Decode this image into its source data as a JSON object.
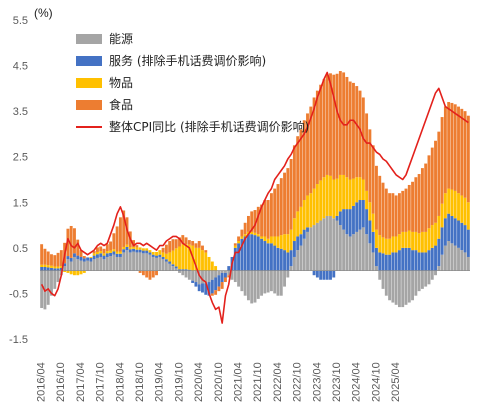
{
  "chart_data": {
    "type": "bar",
    "subtype": "stacked-bar-with-line",
    "unit_label": "(%)",
    "ylim": [
      -1.5,
      5.5
    ],
    "y_ticks": [
      "5.5",
      "4.5",
      "3.5",
      "2.5",
      "1.5",
      "0.5",
      "-0.5",
      "-1.5"
    ],
    "x_tick_labels": [
      "2016/04",
      "2016/10",
      "2017/04",
      "2017/10",
      "2018/04",
      "2018/10",
      "2019/04",
      "2019/10",
      "2020/04",
      "2020/10",
      "2021/04",
      "2021/10",
      "2022/04",
      "2022/10",
      "2023/04",
      "2023/10",
      "2024/04",
      "2024/10",
      "2025/04"
    ],
    "x_start": "2016/04",
    "legend_position": "top-left",
    "grid": false,
    "colors": {
      "energy": "#a5a5a5",
      "services": "#4472c4",
      "goods": "#ffc000",
      "food": "#ed7d31",
      "line": "#e3211c"
    },
    "series": [
      {
        "name": "能源",
        "key": "energy",
        "color": "#a5a5a5",
        "values": [
          -0.82,
          -0.85,
          -0.75,
          -0.55,
          -0.4,
          -0.25,
          -0.1,
          0.1,
          0.25,
          0.2,
          0.3,
          0.25,
          0.22,
          0.2,
          0.22,
          0.2,
          0.25,
          0.28,
          0.3,
          0.25,
          0.3,
          0.32,
          0.35,
          0.3,
          0.3,
          0.4,
          0.45,
          0.4,
          0.42,
          0.4,
          0.4,
          0.38,
          0.38,
          0.35,
          0.3,
          0.28,
          0.3,
          0.25,
          0.2,
          0.15,
          0.1,
          0.05,
          -0.05,
          -0.1,
          -0.15,
          -0.2,
          -0.22,
          -0.25,
          -0.3,
          -0.28,
          -0.28,
          -0.25,
          -0.2,
          -0.15,
          -0.1,
          -0.05,
          -0.05,
          -0.1,
          -0.2,
          -0.25,
          -0.35,
          -0.45,
          -0.55,
          -0.65,
          -0.72,
          -0.7,
          -0.62,
          -0.55,
          -0.5,
          -0.48,
          -0.45,
          -0.5,
          -0.55,
          -0.55,
          -0.35,
          -0.15,
          0.1,
          0.3,
          0.45,
          0.55,
          0.7,
          0.85,
          0.95,
          1.0,
          1.05,
          1.1,
          1.15,
          1.2,
          1.2,
          1.15,
          1.1,
          1.0,
          0.9,
          0.8,
          0.75,
          0.8,
          0.85,
          0.9,
          0.95,
          0.8,
          0.6,
          0.4,
          0.1,
          -0.2,
          -0.4,
          -0.55,
          -0.65,
          -0.7,
          -0.75,
          -0.8,
          -0.8,
          -0.75,
          -0.7,
          -0.65,
          -0.55,
          -0.45,
          -0.4,
          -0.35,
          -0.3,
          -0.2,
          -0.1,
          0.1,
          0.35,
          0.55,
          0.65,
          0.6,
          0.55,
          0.5,
          0.45,
          0.4,
          0.3
        ]
      },
      {
        "name": "服务 (排除手机话费调价影响)",
        "key": "services",
        "color": "#4472c4",
        "values": [
          0.08,
          0.08,
          0.07,
          0.06,
          0.05,
          0.05,
          0.06,
          0.06,
          0.07,
          0.08,
          0.08,
          0.08,
          0.08,
          0.07,
          0.07,
          0.08,
          0.08,
          0.08,
          0.08,
          0.08,
          0.08,
          0.07,
          0.07,
          0.07,
          0.07,
          0.07,
          0.07,
          0.07,
          0.06,
          0.06,
          0.06,
          0.06,
          0.06,
          0.05,
          0.05,
          0.05,
          0.05,
          0.05,
          0.05,
          0.05,
          0.04,
          0.04,
          0.03,
          0.03,
          0.03,
          0.02,
          -0.05,
          -0.1,
          -0.15,
          -0.2,
          -0.25,
          -0.3,
          -0.3,
          -0.28,
          -0.25,
          -0.2,
          -0.1,
          0.1,
          0.3,
          0.5,
          0.6,
          0.7,
          0.75,
          0.8,
          0.8,
          0.78,
          0.75,
          0.7,
          0.65,
          0.6,
          0.6,
          0.55,
          0.5,
          0.48,
          0.45,
          0.4,
          0.35,
          0.35,
          0.3,
          0.25,
          0.2,
          0.1,
          0.0,
          -0.1,
          -0.15,
          -0.2,
          -0.2,
          -0.2,
          -0.2,
          -0.15,
          0.1,
          0.3,
          0.45,
          0.55,
          0.6,
          0.62,
          0.65,
          0.65,
          0.6,
          0.55,
          0.5,
          0.45,
          0.4,
          0.4,
          0.38,
          0.35,
          0.35,
          0.4,
          0.4,
          0.45,
          0.5,
          0.5,
          0.5,
          0.45,
          0.45,
          0.4,
          0.4,
          0.4,
          0.45,
          0.5,
          0.55,
          0.6,
          0.6,
          0.6,
          0.6,
          0.6,
          0.6,
          0.6,
          0.6,
          0.6,
          0.6
        ]
      },
      {
        "name": "物品",
        "key": "goods",
        "color": "#ffc000",
        "values": [
          0.05,
          0.05,
          0.05,
          0.05,
          0.04,
          0.04,
          0.04,
          -0.03,
          -0.05,
          -0.08,
          -0.1,
          -0.1,
          -0.08,
          -0.05,
          0.0,
          0.02,
          0.05,
          0.05,
          0.05,
          0.05,
          0.05,
          0.05,
          0.05,
          0.05,
          0.05,
          0.05,
          0.05,
          0.04,
          0.04,
          0.05,
          0.05,
          0.05,
          0.05,
          0.05,
          0.06,
          0.08,
          0.1,
          0.1,
          0.12,
          0.2,
          0.3,
          0.4,
          0.5,
          0.55,
          0.55,
          0.55,
          0.55,
          0.5,
          0.5,
          0.45,
          0.4,
          0.3,
          0.2,
          0.1,
          0.0,
          0.0,
          0.0,
          0.0,
          0.0,
          0.05,
          0.05,
          0.05,
          0.05,
          0.05,
          0.05,
          0.05,
          0.05,
          0.05,
          0.1,
          0.1,
          0.15,
          0.2,
          0.25,
          0.3,
          0.35,
          0.4,
          0.45,
          0.5,
          0.55,
          0.6,
          0.65,
          0.7,
          0.75,
          0.8,
          0.85,
          0.88,
          0.9,
          0.9,
          0.88,
          0.85,
          0.82,
          0.8,
          0.75,
          0.7,
          0.65,
          0.6,
          0.55,
          0.5,
          0.45,
          0.4,
          0.4,
          0.4,
          0.4,
          0.38,
          0.35,
          0.35,
          0.35,
          0.35,
          0.35,
          0.35,
          0.35,
          0.35,
          0.38,
          0.4,
          0.4,
          0.42,
          0.45,
          0.45,
          0.48,
          0.5,
          0.5,
          0.5,
          0.52,
          0.55,
          0.55,
          0.58,
          0.6,
          0.6,
          0.6,
          0.6,
          0.6
        ]
      },
      {
        "name": "食品",
        "key": "food",
        "color": "#ed7d31",
        "values": [
          0.45,
          0.35,
          0.3,
          0.25,
          0.25,
          0.3,
          0.35,
          0.45,
          0.6,
          0.7,
          0.55,
          0.35,
          0.15,
          0.05,
          0.0,
          0.0,
          0.05,
          0.1,
          0.1,
          0.1,
          0.15,
          0.2,
          0.35,
          0.55,
          0.75,
          0.8,
          0.6,
          0.35,
          0.15,
          0.05,
          -0.05,
          -0.1,
          -0.15,
          -0.2,
          -0.15,
          -0.1,
          0.0,
          0.1,
          0.2,
          0.25,
          0.25,
          0.2,
          0.2,
          0.2,
          0.15,
          0.1,
          0.1,
          0.1,
          0.15,
          0.1,
          0.05,
          0.0,
          -0.05,
          -0.1,
          -0.1,
          -0.15,
          -0.1,
          -0.05,
          0.0,
          0.05,
          0.1,
          0.15,
          0.25,
          0.35,
          0.45,
          0.5,
          0.6,
          0.7,
          0.8,
          0.85,
          0.95,
          1.05,
          1.15,
          1.25,
          1.35,
          1.45,
          1.55,
          1.6,
          1.65,
          1.7,
          1.75,
          1.8,
          1.9,
          2.0,
          2.05,
          2.1,
          2.15,
          2.2,
          2.25,
          2.3,
          2.3,
          2.28,
          2.25,
          2.2,
          2.15,
          2.1,
          2.0,
          1.9,
          1.8,
          1.7,
          1.6,
          1.5,
          1.4,
          1.3,
          1.2,
          1.1,
          1.0,
          0.95,
          0.9,
          0.9,
          0.9,
          0.95,
          1.0,
          1.1,
          1.2,
          1.3,
          1.4,
          1.5,
          1.6,
          1.7,
          1.8,
          1.85,
          1.9,
          1.9,
          1.9,
          1.9,
          1.9,
          1.9,
          1.9,
          1.9,
          1.9
        ]
      }
    ],
    "line": {
      "name": "整体CPI同比 (排除手机话费调价影响)",
      "key": "line",
      "color": "#e3211c",
      "values": [
        -0.3,
        -0.45,
        -0.4,
        -0.5,
        -0.55,
        -0.4,
        -0.1,
        0.35,
        0.7,
        0.55,
        0.5,
        0.6,
        0.45,
        0.4,
        0.35,
        0.4,
        0.45,
        0.55,
        0.6,
        0.55,
        0.6,
        0.8,
        1.0,
        1.25,
        1.4,
        1.2,
        0.9,
        0.7,
        0.55,
        0.6,
        0.6,
        0.55,
        0.6,
        0.55,
        0.5,
        0.45,
        0.55,
        0.55,
        0.65,
        0.7,
        0.75,
        0.75,
        0.7,
        0.6,
        0.55,
        0.5,
        0.3,
        0.1,
        -0.1,
        -0.2,
        -0.25,
        -0.5,
        -0.7,
        -0.85,
        -0.8,
        -1.15,
        -0.55,
        -0.3,
        0.15,
        0.4,
        0.4,
        0.55,
        0.7,
        0.8,
        0.9,
        1.0,
        1.2,
        1.4,
        1.55,
        1.7,
        1.8,
        2.0,
        2.1,
        2.2,
        2.3,
        2.45,
        2.55,
        2.7,
        2.8,
        2.9,
        3.0,
        3.15,
        3.35,
        3.55,
        3.8,
        4.0,
        4.2,
        4.35,
        4.1,
        3.8,
        3.5,
        3.3,
        3.2,
        3.2,
        3.3,
        3.3,
        3.2,
        3.1,
        2.9,
        2.8,
        2.8,
        2.7,
        2.6,
        2.55,
        2.45,
        2.4,
        2.3,
        2.2,
        2.1,
        2.05,
        2.0,
        2.1,
        2.3,
        2.5,
        2.7,
        2.9,
        3.1,
        3.3,
        3.5,
        3.7,
        3.9,
        4.0,
        3.8,
        3.6,
        3.55,
        3.5,
        3.45,
        3.4,
        3.35,
        3.3,
        3.25
      ]
    }
  }
}
